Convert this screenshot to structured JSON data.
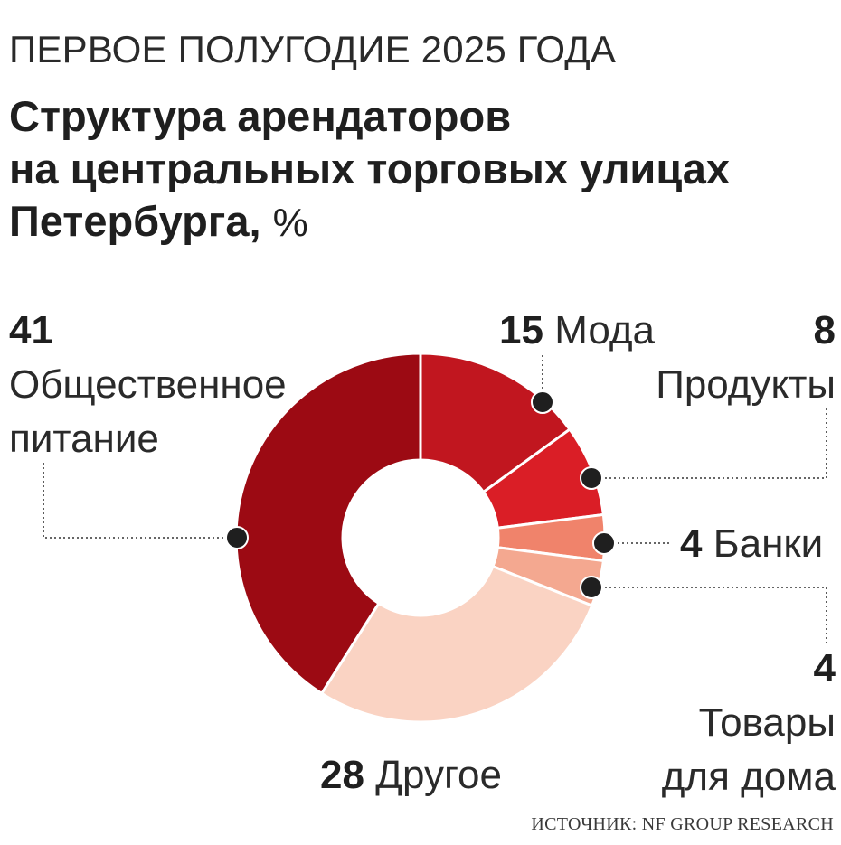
{
  "kicker": "ПЕРВОЕ ПОЛУГОДИЕ 2025 ГОДА",
  "title": {
    "line1": "Структура арендаторов",
    "line2": "на центральных торговых улицах",
    "line3": "Петербурга,",
    "unit": "%"
  },
  "source": "ИСТОЧНИК: NF GROUP RESEARCH",
  "chart_data": {
    "type": "pie",
    "donut": true,
    "unit": "%",
    "slices": [
      {
        "label": "Мода",
        "value": 15,
        "color": "#c1161f"
      },
      {
        "label": "Продукты",
        "value": 8,
        "color": "#da1e26"
      },
      {
        "label": "Банки",
        "value": 4,
        "color": "#f0836b"
      },
      {
        "label": "Товары для дома",
        "value": 4,
        "color": "#f4a890"
      },
      {
        "label": "Другое",
        "value": 28,
        "color": "#fad3c3"
      },
      {
        "label": "Общественное питание",
        "value": 41,
        "color": "#9c0a13"
      }
    ]
  },
  "labels": {
    "food": {
      "value": "41",
      "line1": "Общественное",
      "line2": "питание"
    },
    "fashion": {
      "value": "15",
      "text": "Мода"
    },
    "grocery": {
      "value": "8",
      "text": "Продукты"
    },
    "banks": {
      "value": "4",
      "text": "Банки"
    },
    "home": {
      "value": "4",
      "line1": "Товары",
      "line2": "для дома"
    },
    "other": {
      "value": "28",
      "text": "Другое"
    }
  }
}
